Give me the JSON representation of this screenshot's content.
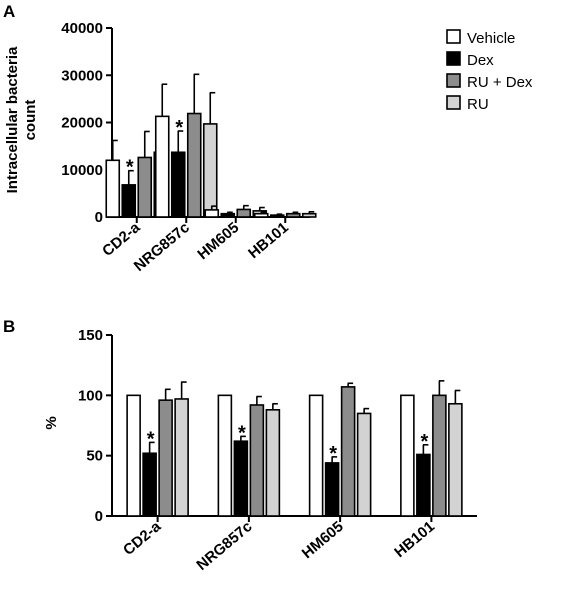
{
  "figure": {
    "panel_labels": [
      "A",
      "B"
    ]
  },
  "colors": {
    "Vehicle": "#ffffff",
    "Dex": "#000000",
    "RU + Dex": "#8c8c8c",
    "RU": "#d3d3d3",
    "stroke": "#000000"
  },
  "chart_data": [
    {
      "panel": "A",
      "type": "bar",
      "ylabel": "Intracellular bacteria count",
      "ylabel_lines": [
        "Intracellular bacteria",
        "count"
      ],
      "categories": [
        "CD2-a",
        "NRG857c",
        "HM605",
        "HB101"
      ],
      "ylim": [
        0,
        40000
      ],
      "yticks": [
        0,
        10000,
        20000,
        30000,
        40000
      ],
      "ytick_labels": [
        "0",
        "10000",
        "20000",
        "30000",
        "40000"
      ],
      "legend": {
        "position": "top-right",
        "entries": [
          "Vehicle",
          "Dex",
          "RU + Dex",
          "RU"
        ]
      },
      "series": [
        {
          "name": "Vehicle",
          "values": [
            12000,
            21300,
            1500,
            700
          ],
          "errors": [
            4200,
            6800,
            800,
            300
          ]
        },
        {
          "name": "Dex",
          "values": [
            6800,
            13700,
            700,
            400
          ],
          "errors": [
            3000,
            4500,
            300,
            200
          ]
        },
        {
          "name": "RU + Dex",
          "values": [
            12600,
            21900,
            1600,
            700
          ],
          "errors": [
            5500,
            8300,
            800,
            300
          ]
        },
        {
          "name": "RU",
          "values": [
            13700,
            19700,
            1300,
            700
          ],
          "errors": [
            5600,
            6600,
            700,
            400
          ]
        }
      ],
      "significance": [
        {
          "category": "CD2-a",
          "series": "Dex",
          "label": "*"
        },
        {
          "category": "NRG857c",
          "series": "Dex",
          "label": "*"
        }
      ]
    },
    {
      "panel": "B",
      "type": "bar",
      "ylabel": "%",
      "ylabel_lines": [
        "%"
      ],
      "categories": [
        "CD2-a",
        "NRG857c",
        "HM605",
        "HB101"
      ],
      "ylim": [
        0,
        150
      ],
      "yticks": [
        0,
        50,
        100,
        150
      ],
      "ytick_labels": [
        "0",
        "50",
        "100",
        "150"
      ],
      "series": [
        {
          "name": "Vehicle",
          "values": [
            100,
            100,
            100,
            100
          ],
          "errors": [
            0,
            0,
            0,
            0
          ]
        },
        {
          "name": "Dex",
          "values": [
            52,
            62,
            44,
            51
          ],
          "errors": [
            9,
            4,
            5,
            8
          ]
        },
        {
          "name": "RU + Dex",
          "values": [
            96,
            92,
            107,
            100
          ],
          "errors": [
            9,
            7,
            3,
            12
          ]
        },
        {
          "name": "RU",
          "values": [
            97,
            88,
            85,
            93
          ],
          "errors": [
            14,
            5,
            4,
            11
          ]
        }
      ],
      "significance": [
        {
          "category": "CD2-a",
          "series": "Dex",
          "label": "*"
        },
        {
          "category": "NRG857c",
          "series": "Dex",
          "label": "*"
        },
        {
          "category": "HM605",
          "series": "Dex",
          "label": "*"
        },
        {
          "category": "HB101",
          "series": "Dex",
          "label": "*"
        }
      ]
    }
  ]
}
